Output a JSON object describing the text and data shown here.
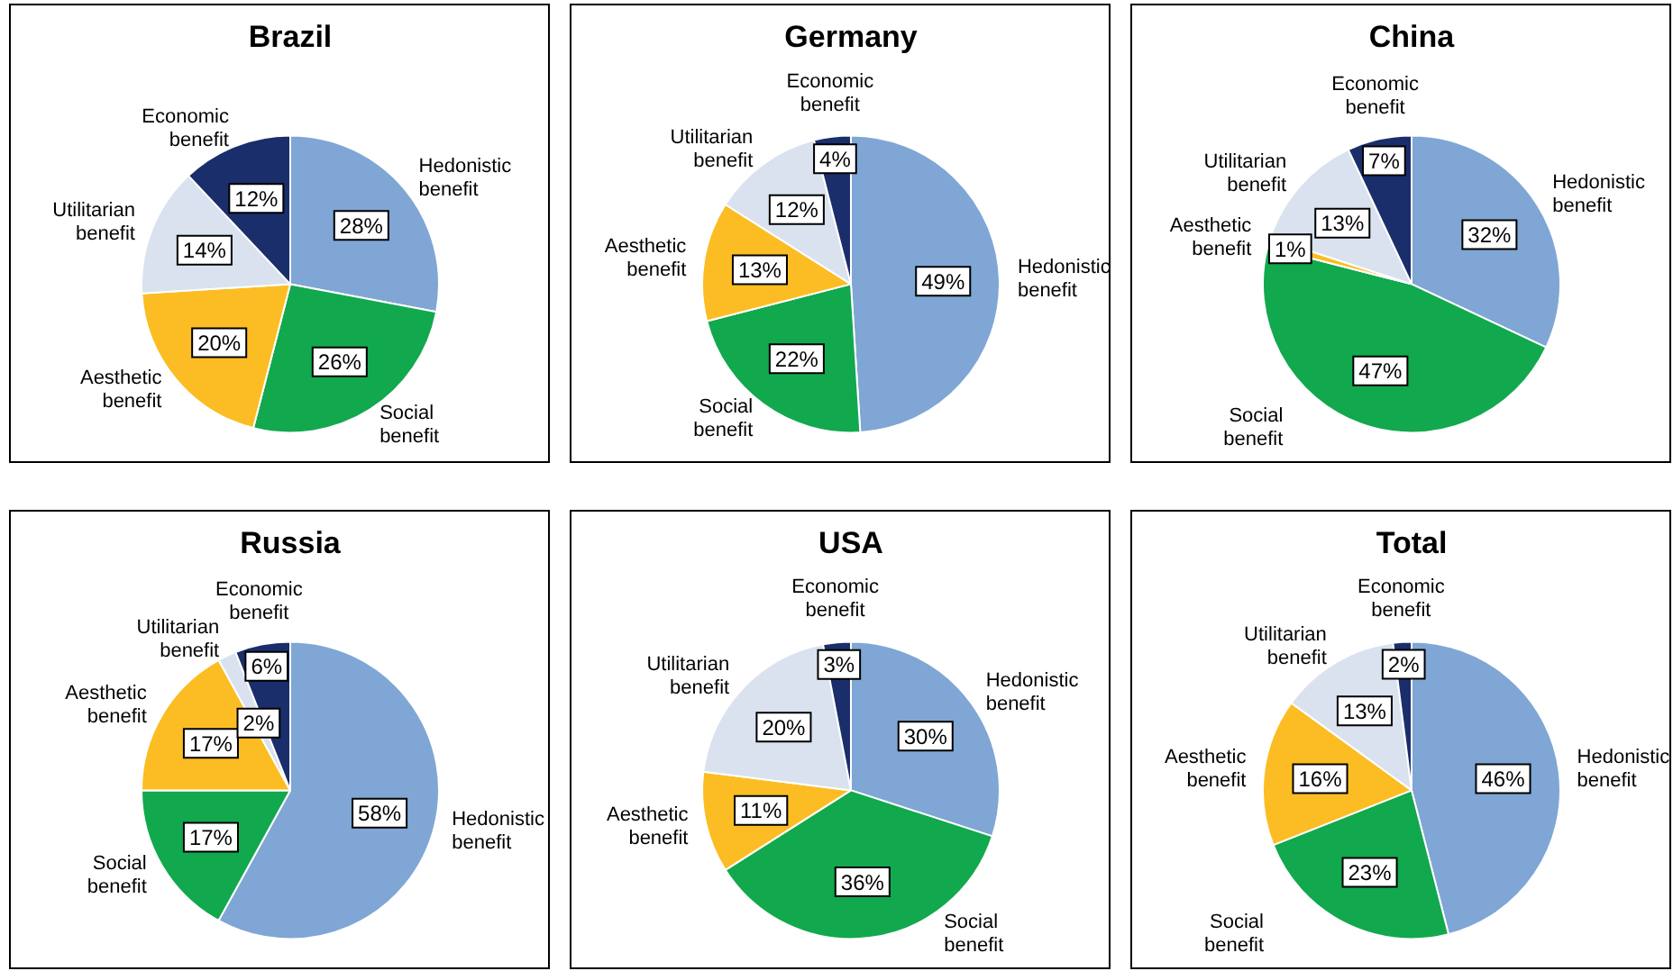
{
  "chart_data": [
    {
      "type": "pie",
      "title": "Brazil",
      "categories": [
        "Hedonistic benefit",
        "Social benefit",
        "Aesthetic benefit",
        "Utilitarian benefit",
        "Economic benefit"
      ],
      "values": [
        28,
        26,
        20,
        14,
        12
      ],
      "value_labels": [
        "28%",
        "26%",
        "20%",
        "14%",
        "12%"
      ],
      "colors": [
        "#7fa6d4",
        "#12a84d",
        "#fbbd23",
        "#d9e2ee",
        "#1a2e6b"
      ]
    },
    {
      "type": "pie",
      "title": "Germany",
      "categories": [
        "Hedonistic benefit",
        "Social benefit",
        "Aesthetic benefit",
        "Utilitarian benefit",
        "Economic benefit"
      ],
      "values": [
        49,
        22,
        13,
        12,
        4
      ],
      "value_labels": [
        "49%",
        "22%",
        "13%",
        "12%",
        "4%"
      ],
      "colors": [
        "#7fa6d4",
        "#12a84d",
        "#fbbd23",
        "#d9e2ee",
        "#1a2e6b"
      ]
    },
    {
      "type": "pie",
      "title": "China",
      "categories": [
        "Hedonistic benefit",
        "Social benefit",
        "Aesthetic benefit",
        "Utilitarian benefit",
        "Economic benefit"
      ],
      "values": [
        32,
        47,
        1,
        13,
        7
      ],
      "value_labels": [
        "32%",
        "47%",
        "1%",
        "13%",
        "7%"
      ],
      "colors": [
        "#7fa6d4",
        "#12a84d",
        "#fbbd23",
        "#d9e2ee",
        "#1a2e6b"
      ]
    },
    {
      "type": "pie",
      "title": "Russia",
      "categories": [
        "Hedonistic benefit",
        "Social benefit",
        "Aesthetic benefit",
        "Utilitarian benefit",
        "Economic benefit"
      ],
      "values": [
        58,
        17,
        17,
        2,
        6
      ],
      "value_labels": [
        "58%",
        "17%",
        "17%",
        "2%",
        "6%"
      ],
      "colors": [
        "#7fa6d4",
        "#12a84d",
        "#fbbd23",
        "#d9e2ee",
        "#1a2e6b"
      ]
    },
    {
      "type": "pie",
      "title": "USA",
      "categories": [
        "Hedonistic benefit",
        "Social benefit",
        "Aesthetic benefit",
        "Utilitarian benefit",
        "Economic benefit"
      ],
      "values": [
        30,
        36,
        11,
        20,
        3
      ],
      "value_labels": [
        "30%",
        "36%",
        "11%",
        "20%",
        "3%"
      ],
      "colors": [
        "#7fa6d4",
        "#12a84d",
        "#fbbd23",
        "#d9e2ee",
        "#1a2e6b"
      ]
    },
    {
      "type": "pie",
      "title": "Total",
      "categories": [
        "Hedonistic benefit",
        "Social benefit",
        "Aesthetic benefit",
        "Utilitarian benefit",
        "Economic benefit"
      ],
      "values": [
        46,
        23,
        16,
        13,
        2
      ],
      "value_labels": [
        "46%",
        "23%",
        "16%",
        "13%",
        "2%"
      ],
      "colors": [
        "#7fa6d4",
        "#12a84d",
        "#fbbd23",
        "#d9e2ee",
        "#1a2e6b"
      ]
    }
  ]
}
